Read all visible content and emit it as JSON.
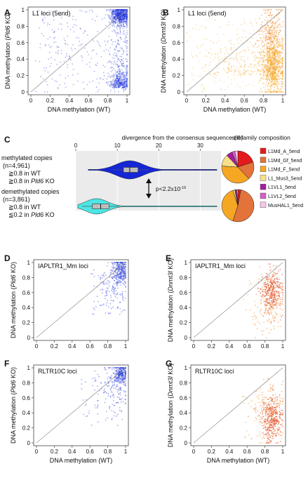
{
  "figure": {
    "panel_letters": [
      "A",
      "B",
      "C",
      "D",
      "E",
      "F",
      "G"
    ],
    "panels": {
      "A": {
        "title": "L1 loci (5end)",
        "ylabel_pre": "DNA methylation",
        "ylabel_it": "Pld6",
        "ylabel_post": " KO",
        "xlabel": "DNA methylation  (WT)",
        "ticks": [
          "0",
          "0.2",
          "0.4",
          "0.6",
          "0.8",
          "1"
        ]
      },
      "B": {
        "title": "L1 loci (5end)",
        "ylabel_pre": "DNA methylation",
        "ylabel_it": "Dnmt3l",
        "ylabel_post": " KO",
        "xlabel": "DNA methylation  (WT)",
        "ticks": [
          "0",
          "0.2",
          "0.4",
          "0.6",
          "0.8",
          "1"
        ]
      },
      "D": {
        "title": "IAPLTR1_Mm loci",
        "ylabel_pre": "DNA methylation",
        "ylabel_it": "Pld6",
        "ylabel_post": " KO",
        "xlabel": "",
        "ticks": [
          "0",
          "0.2",
          "0.4",
          "0.6",
          "0.8",
          "1"
        ]
      },
      "E": {
        "title": "IAPLTR1_Mm loci",
        "ylabel_pre": "DNA methylation",
        "ylabel_it": "Dnmt3l",
        "ylabel_post": " KO",
        "xlabel": "",
        "ticks": [
          "0",
          "0.2",
          "0.4",
          "0.6",
          "0.8",
          "1"
        ]
      },
      "F": {
        "title": "RLTR10C loci",
        "ylabel_pre": "DNA methylation",
        "ylabel_it": "Pld6",
        "ylabel_post": " KO",
        "xlabel": "DNA methylation  (WT)",
        "ticks": [
          "0",
          "0.2",
          "0.4",
          "0.6",
          "0.8",
          "1"
        ]
      },
      "G": {
        "title": "RLTR10C loci",
        "ylabel_pre": "DNA methylation",
        "ylabel_it": "Dnmt3l",
        "ylabel_post": " KO",
        "xlabel": "DNA methylation  (WT)",
        "ticks": [
          "0",
          "0.2",
          "0.4",
          "0.6",
          "0.8",
          "1"
        ]
      }
    },
    "panel_c": {
      "violin_title": "divergence from the consensus sequence (%)",
      "x_ticks": [
        "0",
        "10",
        "20",
        "30"
      ],
      "pie_title": "subfamily composition",
      "methylated": {
        "line1": "methylated copies",
        "line2": "(n=4,961)",
        "line3": "≧0.8 in WT",
        "line4_pre": "≧0.8 in ",
        "line4_it": "Pld6",
        "line4_post": " KO"
      },
      "demethylated": {
        "line1": "demethylated copies",
        "line2": "(n=3,861)",
        "line3": "≧0.8 in WT",
        "line4_pre": "≦0.2 in ",
        "line4_it": "Pld6",
        "line4_post": " KO"
      },
      "pvalue": "p<2.2x10",
      "pvalue_exp": "-16",
      "legend": [
        {
          "label": "L1Md_A_5end",
          "color": "#e41a1c"
        },
        {
          "label": "L1Md_Gf_5end",
          "color": "#e2733a"
        },
        {
          "label": "L1Md_F_5end",
          "color": "#f5a623"
        },
        {
          "label": "L1_Mus3_5end",
          "color": "#f9df8a"
        },
        {
          "label": "L1VL1_5end",
          "color": "#a51f9c"
        },
        {
          "label": "L1VL2_5end",
          "color": "#d45fc7"
        },
        {
          "label": "MusHAL1_5end",
          "color": "#f7c6e8"
        }
      ]
    },
    "colors": {
      "blue": "#1a2fd9",
      "orange": "#f47c14",
      "red": "#e5521a",
      "cyan": "#4ce6e6",
      "violin_blue": "#1526d6"
    }
  },
  "chart_data": [
    {
      "panel": "A",
      "type": "scatter",
      "title": "L1 loci (5end)",
      "xlabel": "DNA methylation  (WT)",
      "ylabel": "DNA methylation (Pld6 KO)",
      "xlim": [
        0,
        1
      ],
      "ylim": [
        0,
        1
      ],
      "diagonal": true,
      "density_centers": [
        [
          0.95,
          0.95
        ],
        [
          0.95,
          0.05
        ]
      ]
    },
    {
      "panel": "B",
      "type": "scatter",
      "title": "L1 loci (5end)",
      "xlabel": "DNA methylation  (WT)",
      "ylabel": "DNA methylation (Dnmt3l KO)",
      "xlim": [
        0,
        1
      ],
      "ylim": [
        0,
        1
      ],
      "diagonal": true,
      "density_centers": [
        [
          0.9,
          0.3
        ]
      ]
    },
    {
      "panel": "C-violin",
      "type": "violin",
      "xlabel": "divergence from the consensus sequence (%)",
      "xlim": [
        0,
        35
      ],
      "series": [
        {
          "name": "methylated copies",
          "n": 4961,
          "median": 13,
          "q1": 11.5,
          "q3": 15,
          "range": [
            0,
            35
          ]
        },
        {
          "name": "demethylated copies",
          "n": 3861,
          "median": 6,
          "q1": 4,
          "q3": 8,
          "range": [
            0,
            35
          ]
        }
      ],
      "annotation": "p<2.2x10-16"
    },
    {
      "panel": "C-pie",
      "type": "pie",
      "categories": [
        "L1Md_A_5end",
        "L1Md_Gf_5end",
        "L1Md_F_5end",
        "L1_Mus3_5end",
        "L1VL1_5end",
        "L1VL2_5end",
        "MusHAL1_5end"
      ],
      "series": [
        {
          "name": "methylated copies",
          "values": [
            0.2,
            0.18,
            0.38,
            0.12,
            0.06,
            0.03,
            0.03
          ]
        },
        {
          "name": "demethylated copies",
          "values": [
            0.03,
            0.52,
            0.4,
            0.02,
            0.01,
            0.01,
            0.01
          ]
        }
      ]
    },
    {
      "panel": "D",
      "type": "scatter",
      "title": "IAPLTR1_Mm loci",
      "ylabel": "DNA methylation (Pld6 KO)",
      "xlim": [
        0,
        1
      ],
      "ylim": [
        0,
        1
      ],
      "diagonal": true,
      "density_centers": [
        [
          0.95,
          0.9
        ]
      ]
    },
    {
      "panel": "E",
      "type": "scatter",
      "title": "IAPLTR1_Mm loci",
      "ylabel": "DNA methylation (Dnmt3l KO)",
      "xlim": [
        0,
        1
      ],
      "ylim": [
        0,
        1
      ],
      "diagonal": true,
      "density_centers": [
        [
          0.88,
          0.62
        ]
      ]
    },
    {
      "panel": "F",
      "type": "scatter",
      "title": "RLTR10C loci",
      "xlabel": "DNA methylation  (WT)",
      "ylabel": "DNA methylation (Pld6 KO)",
      "xlim": [
        0,
        1
      ],
      "ylim": [
        0,
        1
      ],
      "diagonal": true,
      "density_centers": [
        [
          0.95,
          0.92
        ]
      ]
    },
    {
      "panel": "G",
      "type": "scatter",
      "title": "RLTR10C loci",
      "xlabel": "DNA methylation  (WT)",
      "ylabel": "DNA methylation (Dnmt3l KO)",
      "xlim": [
        0,
        1
      ],
      "ylim": [
        0,
        1
      ],
      "diagonal": true,
      "density_centers": [
        [
          0.9,
          0.3
        ]
      ]
    }
  ]
}
